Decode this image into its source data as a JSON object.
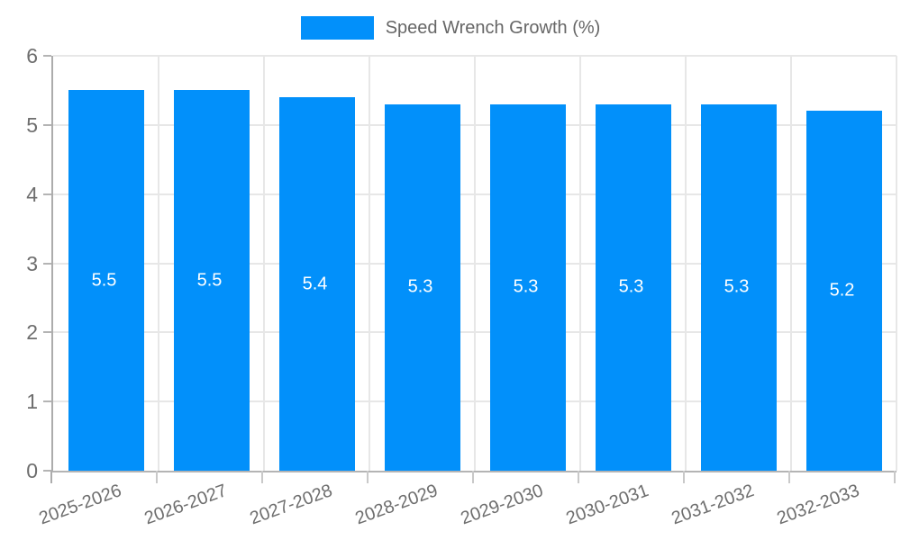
{
  "chart_data": {
    "type": "bar",
    "title": "",
    "series_name": "Speed Wrench Growth (%)",
    "categories": [
      "2025-2026",
      "2026-2027",
      "2027-2028",
      "2028-2029",
      "2029-2030",
      "2030-2031",
      "2031-2032",
      "2032-2033"
    ],
    "values": [
      5.5,
      5.5,
      5.4,
      5.3,
      5.3,
      5.3,
      5.3,
      5.2
    ],
    "value_labels": [
      "5.5",
      "5.5",
      "5.4",
      "5.3",
      "5.3",
      "5.3",
      "5.3",
      "5.2"
    ],
    "xlabel": "",
    "ylabel": "",
    "ylim": [
      0,
      6
    ],
    "yticks": [
      0,
      1,
      2,
      3,
      4,
      5,
      6
    ],
    "grid": true,
    "legend_position": "top-center",
    "value_label_position": "inside-center",
    "bar_color": "#0290fa",
    "value_label_color": "#ffffff"
  }
}
